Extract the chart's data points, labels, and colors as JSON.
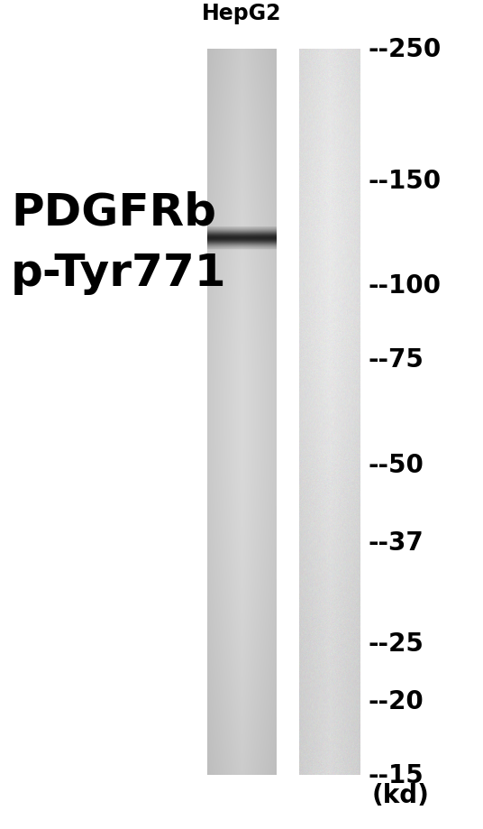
{
  "title": "HepG2",
  "label_line1": "PDGFRb",
  "label_line2": "p-Tyr771",
  "marker_labels": [
    "250",
    "150",
    "100",
    "75",
    "50",
    "37",
    "25",
    "20",
    "15"
  ],
  "marker_unit": "(kd)",
  "kd_values": [
    250,
    150,
    100,
    75,
    50,
    37,
    25,
    20,
    15
  ],
  "background_color": "#ffffff",
  "title_fontsize": 17,
  "label_fontsize": 36,
  "marker_fontsize": 20,
  "band_kd": 120,
  "band_thickness": 6,
  "band_darkness": 0.12
}
